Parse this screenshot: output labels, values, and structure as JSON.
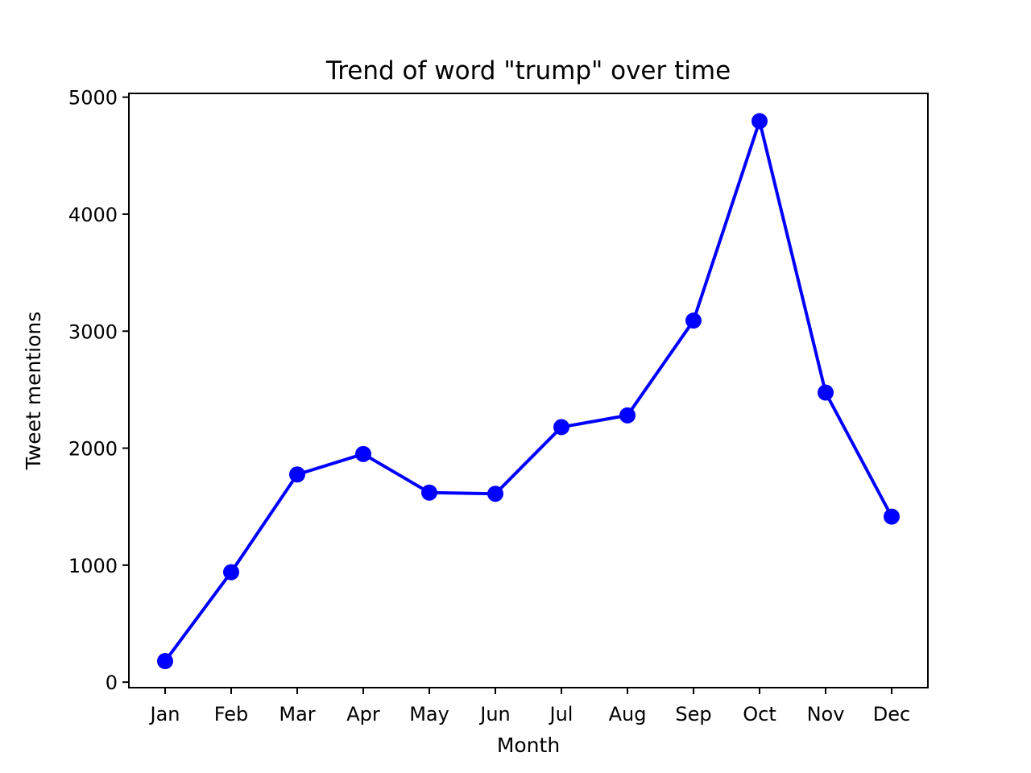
{
  "chart_data": {
    "type": "line",
    "title": "Trend of word \"trump\" over time",
    "xlabel": "Month",
    "ylabel": "Tweet mentions",
    "categories": [
      "Jan",
      "Feb",
      "Mar",
      "Apr",
      "May",
      "Jun",
      "Jul",
      "Aug",
      "Sep",
      "Oct",
      "Nov",
      "Dec"
    ],
    "series": [
      {
        "values": [
          180,
          940,
          1775,
          1950,
          1620,
          1610,
          2180,
          2280,
          3090,
          4795,
          2475,
          1415
        ],
        "color": "#0000ff",
        "marker": "circle"
      }
    ],
    "yticks": [
      0,
      1000,
      2000,
      3000,
      4000,
      5000
    ],
    "ylim": [
      -47,
      5032
    ],
    "grid": false,
    "legend": false
  }
}
